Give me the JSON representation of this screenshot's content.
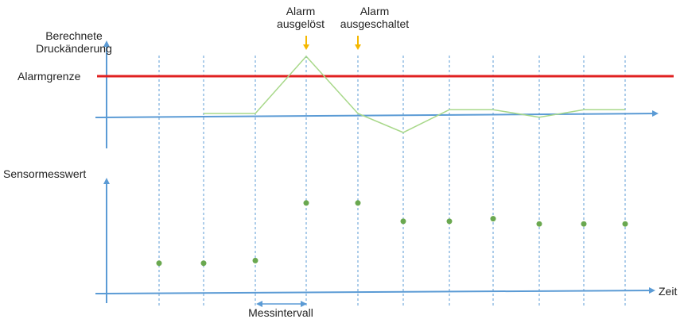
{
  "labels": {
    "upper_y_axis": [
      "Berechnete",
      "Druckänderung"
    ],
    "alarm_limit": "Alarmgrenze",
    "alarm_triggered": [
      "Alarm",
      "ausgelöst"
    ],
    "alarm_off": [
      "Alarm",
      "ausgeschaltet"
    ],
    "lower_y_axis": "Sensormesswert",
    "x_axis": "Zeit",
    "interval": "Messintervall"
  },
  "colors": {
    "axis": "#5b9bd5",
    "alarm_limit": "#e02020",
    "computed_line": "#a8d88a",
    "sensor_points": "#6aa84f",
    "event_arrow": "#f5b800",
    "grid": "#5b9bd5"
  },
  "chart_data": {
    "type": "line",
    "x": [
      1,
      2,
      3,
      4,
      5,
      6,
      7,
      8,
      9,
      10,
      11
    ],
    "alarm_limit": 1,
    "series": [
      {
        "values": [
          0,
          0,
          0,
          1.5,
          0,
          -0.5,
          0.1,
          0.1,
          -0.1,
          0.1,
          0.1
        ]
      },
      {
        "values": [
          1.1,
          1.1,
          1.2,
          3.4,
          3.4,
          2.7,
          2.7,
          2.8,
          2.6,
          2.6,
          2.6
        ]
      }
    ],
    "events": [
      {
        "sample": 4,
        "label": "alarm_triggered"
      },
      {
        "sample": 5,
        "label": "alarm_off"
      }
    ],
    "interval_between_samples": [
      3,
      4
    ]
  }
}
